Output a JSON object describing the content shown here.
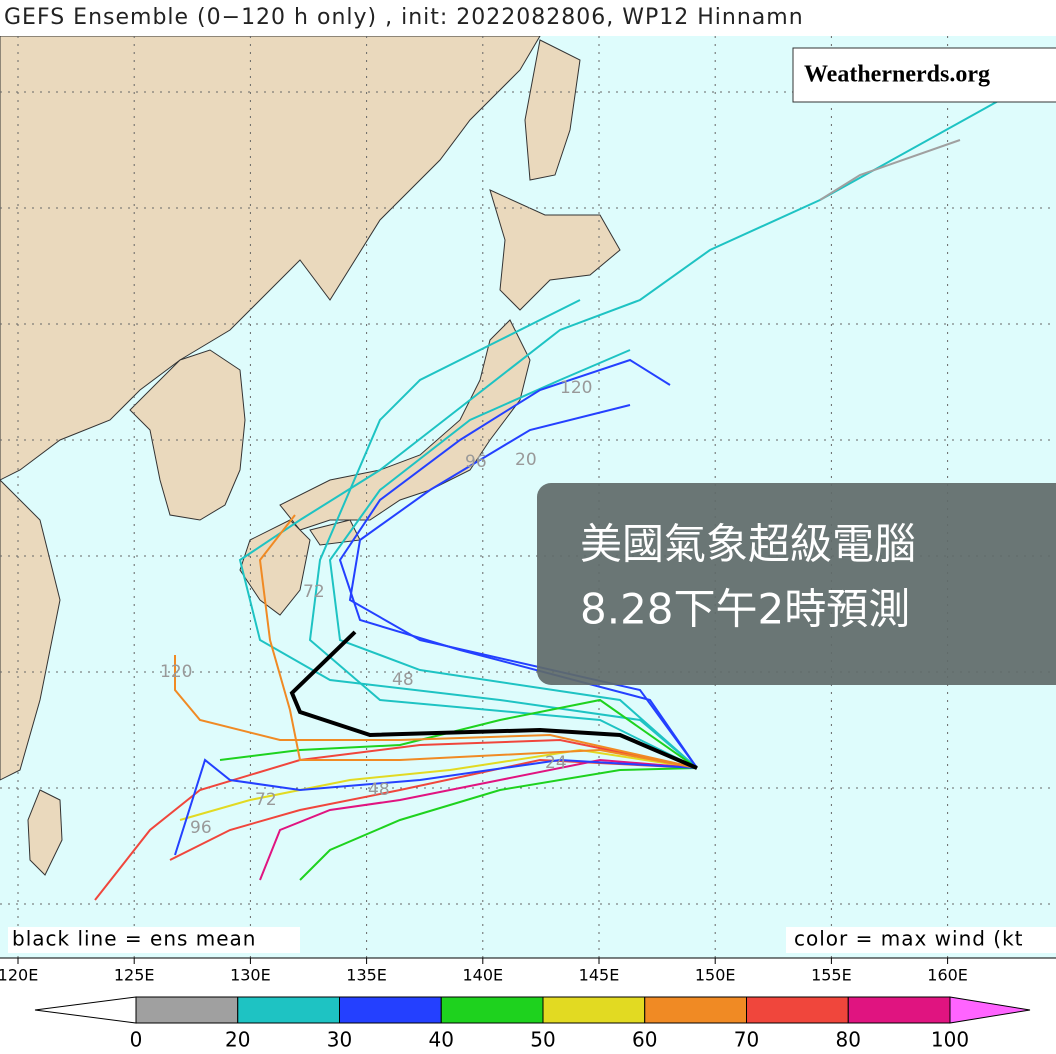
{
  "header": {
    "title": "GEFS Ensemble (0−120 h only) , init: 2022082806, WP12 Hinnamn"
  },
  "watermark": "Weathernerds.org",
  "overlay": {
    "line1": "美國氣象超級電腦",
    "line2": "8.28下午2時預測"
  },
  "notes": {
    "left": "black line = ens mean",
    "right": "color = max wind (kt"
  },
  "lon_labels": [
    "120E",
    "125E",
    "130E",
    "135E",
    "140E",
    "145E",
    "150E",
    "155E",
    "160E"
  ],
  "track_labels": [
    "120",
    "72",
    "48",
    "24",
    "96",
    "120",
    "72",
    "48",
    "96",
    "20"
  ],
  "colorbar": {
    "ticks": [
      0,
      20,
      30,
      40,
      50,
      60,
      70,
      80,
      100
    ],
    "colors": [
      "#a0a0a0",
      "#1ec3c3",
      "#2440ff",
      "#1ed21e",
      "#e2da22",
      "#f08a24",
      "#f0463c",
      "#e01480"
    ],
    "under_color": "#ffffff",
    "over_color": "#ff64ff"
  }
}
